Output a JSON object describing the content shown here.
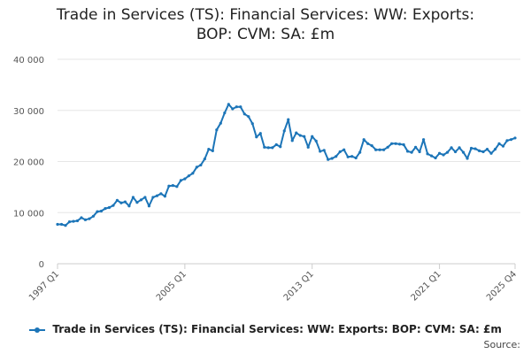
{
  "chart_data": {
    "type": "line",
    "title_lines": [
      "Trade in Services (TS): Financial Services: WW: Exports:",
      "BOP: CVM: SA: £m"
    ],
    "xlabel": "",
    "ylabel": "",
    "ylim": [
      0,
      40000
    ],
    "y_ticks": [
      0,
      10000,
      20000,
      30000,
      40000
    ],
    "y_tick_labels": [
      "0",
      "10 000",
      "20 000",
      "30 000",
      "40 000"
    ],
    "x_tick_labels": [
      "1997 Q1",
      "2005 Q1",
      "2013 Q1",
      "2021 Q1",
      "2025 Q4"
    ],
    "x_tick_positions": [
      0,
      32,
      64,
      96,
      115
    ],
    "grid": true,
    "legend_position": "bottom",
    "color": "#1c75b8",
    "series": [
      {
        "name": "Trade in Services (TS): Financial Services: WW: Exports: BOP: CVM: SA: £m",
        "start": "1997 Q1",
        "end": "2025 Q4",
        "values": [
          7700,
          7700,
          7500,
          8200,
          8300,
          8400,
          9000,
          8600,
          8800,
          9300,
          10200,
          10300,
          10800,
          11000,
          11400,
          12400,
          11900,
          12100,
          11300,
          13000,
          12000,
          12500,
          13000,
          11300,
          13000,
          13300,
          13700,
          13200,
          15200,
          15300,
          15100,
          16300,
          16600,
          17200,
          17700,
          18900,
          19300,
          20500,
          22400,
          22100,
          26200,
          27500,
          29500,
          31200,
          30300,
          30700,
          30700,
          29300,
          28800,
          27400,
          24800,
          25500,
          22800,
          22700,
          22700,
          23300,
          22900,
          26000,
          28200,
          24100,
          25600,
          25100,
          24900,
          22800,
          24900,
          24000,
          22000,
          22200,
          20400,
          20600,
          21000,
          21900,
          22300,
          20900,
          21000,
          20700,
          21800,
          24300,
          23500,
          23100,
          22300,
          22300,
          22300,
          22800,
          23500,
          23500,
          23400,
          23300,
          22000,
          21800,
          22800,
          21900,
          24300,
          21500,
          21100,
          20700,
          21600,
          21300,
          21800,
          22700,
          21900,
          22700,
          21800,
          20600,
          22600,
          22500,
          22100,
          21900,
          22400,
          21600,
          22400,
          23500,
          23000,
          24100,
          24300,
          24600
        ]
      }
    ]
  },
  "source_label": "Source:"
}
